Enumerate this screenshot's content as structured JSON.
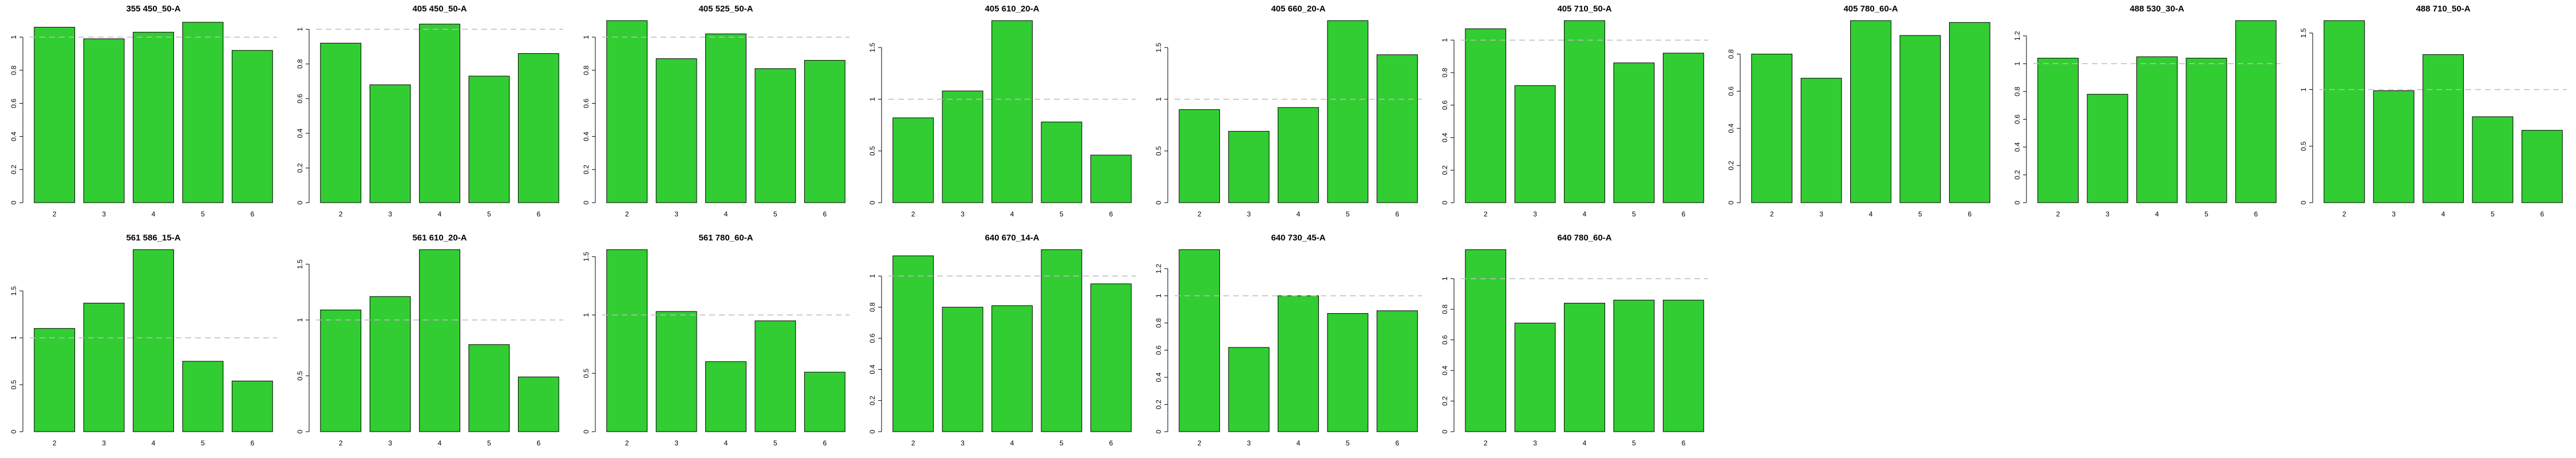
{
  "colors": {
    "bar_fill": "#32cd32",
    "bar_stroke": "#000000",
    "reference_line": "#bdbdbd",
    "background": "#ffffff"
  },
  "chart_data": [
    {
      "type": "bar",
      "title": "355 450_50-A",
      "categories": [
        "2",
        "3",
        "4",
        "5",
        "6"
      ],
      "values": [
        1.06,
        0.99,
        1.03,
        1.09,
        0.92
      ],
      "ylim": [
        0,
        1.1
      ],
      "yticks": [
        0,
        0.2,
        0.4,
        0.6,
        0.8,
        1.0
      ],
      "reference_line": 1.0,
      "grid": false
    },
    {
      "type": "bar",
      "title": "405 450_50-A",
      "categories": [
        "2",
        "3",
        "4",
        "5",
        "6"
      ],
      "values": [
        0.92,
        0.68,
        1.03,
        0.73,
        0.86
      ],
      "ylim": [
        0,
        1.05
      ],
      "yticks": [
        0,
        0.2,
        0.4,
        0.6,
        0.8,
        1.0
      ],
      "reference_line": 1.0,
      "grid": false
    },
    {
      "type": "bar",
      "title": "405 525_50-A",
      "categories": [
        "2",
        "3",
        "4",
        "5",
        "6"
      ],
      "values": [
        1.1,
        0.87,
        1.02,
        0.81,
        0.86
      ],
      "ylim": [
        0,
        1.1
      ],
      "yticks": [
        0,
        0.2,
        0.4,
        0.6,
        0.8,
        1.0
      ],
      "reference_line": 1.0,
      "grid": false
    },
    {
      "type": "bar",
      "title": "405 610_20-A",
      "categories": [
        "2",
        "3",
        "4",
        "5",
        "6"
      ],
      "values": [
        0.82,
        1.08,
        1.76,
        0.78,
        0.46
      ],
      "ylim": [
        0,
        1.76
      ],
      "yticks": [
        0,
        0.5,
        1.0,
        1.5
      ],
      "reference_line": 1.0,
      "grid": false
    },
    {
      "type": "bar",
      "title": "405 660_20-A",
      "categories": [
        "2",
        "3",
        "4",
        "5",
        "6"
      ],
      "values": [
        0.9,
        0.69,
        0.92,
        1.76,
        1.43
      ],
      "ylim": [
        0,
        1.76
      ],
      "yticks": [
        0,
        0.5,
        1.0,
        1.5
      ],
      "reference_line": 1.0,
      "grid": false
    },
    {
      "type": "bar",
      "title": "405 710_50-A",
      "categories": [
        "2",
        "3",
        "4",
        "5",
        "6"
      ],
      "values": [
        1.07,
        0.72,
        1.12,
        0.86,
        0.92
      ],
      "ylim": [
        0,
        1.12
      ],
      "yticks": [
        0,
        0.2,
        0.4,
        0.6,
        0.8,
        1.0
      ],
      "reference_line": 1.0,
      "grid": false
    },
    {
      "type": "bar",
      "title": "405 780_60-A",
      "categories": [
        "2",
        "3",
        "4",
        "5",
        "6"
      ],
      "values": [
        0.8,
        0.67,
        0.98,
        0.9,
        0.97
      ],
      "ylim": [
        0,
        0.98
      ],
      "yticks": [
        0,
        0.2,
        0.4,
        0.6,
        0.8
      ],
      "reference_line": 1.0,
      "grid": false
    },
    {
      "type": "bar",
      "title": "488 530_30-A",
      "categories": [
        "2",
        "3",
        "4",
        "5",
        "6"
      ],
      "values": [
        1.04,
        0.78,
        1.05,
        1.04,
        1.31
      ],
      "ylim": [
        0,
        1.31
      ],
      "yticks": [
        0,
        0.2,
        0.4,
        0.6,
        0.8,
        1.0,
        1.2
      ],
      "reference_line": 1.0,
      "grid": false
    },
    {
      "type": "bar",
      "title": "488 710_50-A",
      "categories": [
        "2",
        "3",
        "4",
        "5",
        "6"
      ],
      "values": [
        1.61,
        0.99,
        1.31,
        0.76,
        0.64
      ],
      "ylim": [
        0,
        1.61
      ],
      "yticks": [
        0,
        0.5,
        1.0,
        1.5
      ],
      "reference_line": 1.0,
      "grid": false
    },
    {
      "type": "bar",
      "title": "561 586_15-A",
      "categories": [
        "2",
        "3",
        "4",
        "5",
        "6"
      ],
      "values": [
        1.1,
        1.37,
        1.94,
        0.75,
        0.54
      ],
      "ylim": [
        0,
        1.94
      ],
      "yticks": [
        0,
        0.5,
        1.0,
        1.5
      ],
      "reference_line": 1.0,
      "grid": false
    },
    {
      "type": "bar",
      "title": "561 610_20-A",
      "categories": [
        "2",
        "3",
        "4",
        "5",
        "6"
      ],
      "values": [
        1.09,
        1.21,
        1.63,
        0.78,
        0.49
      ],
      "ylim": [
        0,
        1.63
      ],
      "yticks": [
        0,
        0.5,
        1.0,
        1.5
      ],
      "reference_line": 1.0,
      "grid": false
    },
    {
      "type": "bar",
      "title": "561 780_60-A",
      "categories": [
        "2",
        "3",
        "4",
        "5",
        "6"
      ],
      "values": [
        1.56,
        1.03,
        0.6,
        0.95,
        0.51
      ],
      "ylim": [
        0,
        1.56
      ],
      "yticks": [
        0,
        0.5,
        1.0,
        1.5
      ],
      "reference_line": 1.0,
      "grid": false
    },
    {
      "type": "bar",
      "title": "640 670_14-A",
      "categories": [
        "2",
        "3",
        "4",
        "5",
        "6"
      ],
      "values": [
        1.13,
        0.8,
        0.81,
        1.17,
        0.95
      ],
      "ylim": [
        0,
        1.17
      ],
      "yticks": [
        0,
        0.2,
        0.4,
        0.6,
        0.8,
        1.0
      ],
      "reference_line": 1.0,
      "grid": false
    },
    {
      "type": "bar",
      "title": "640 730_45-A",
      "categories": [
        "2",
        "3",
        "4",
        "5",
        "6"
      ],
      "values": [
        1.34,
        0.62,
        1.0,
        0.87,
        0.89
      ],
      "ylim": [
        0,
        1.34
      ],
      "yticks": [
        0,
        0.2,
        0.4,
        0.6,
        0.8,
        1.0,
        1.2
      ],
      "reference_line": 1.0,
      "grid": false
    },
    {
      "type": "bar",
      "title": "640 780_60-A",
      "categories": [
        "2",
        "3",
        "4",
        "5",
        "6"
      ],
      "values": [
        1.19,
        0.71,
        0.84,
        0.86,
        0.86
      ],
      "ylim": [
        0,
        1.19
      ],
      "yticks": [
        0,
        0.2,
        0.4,
        0.6,
        0.8,
        1.0
      ],
      "reference_line": 1.0,
      "grid": false
    }
  ]
}
